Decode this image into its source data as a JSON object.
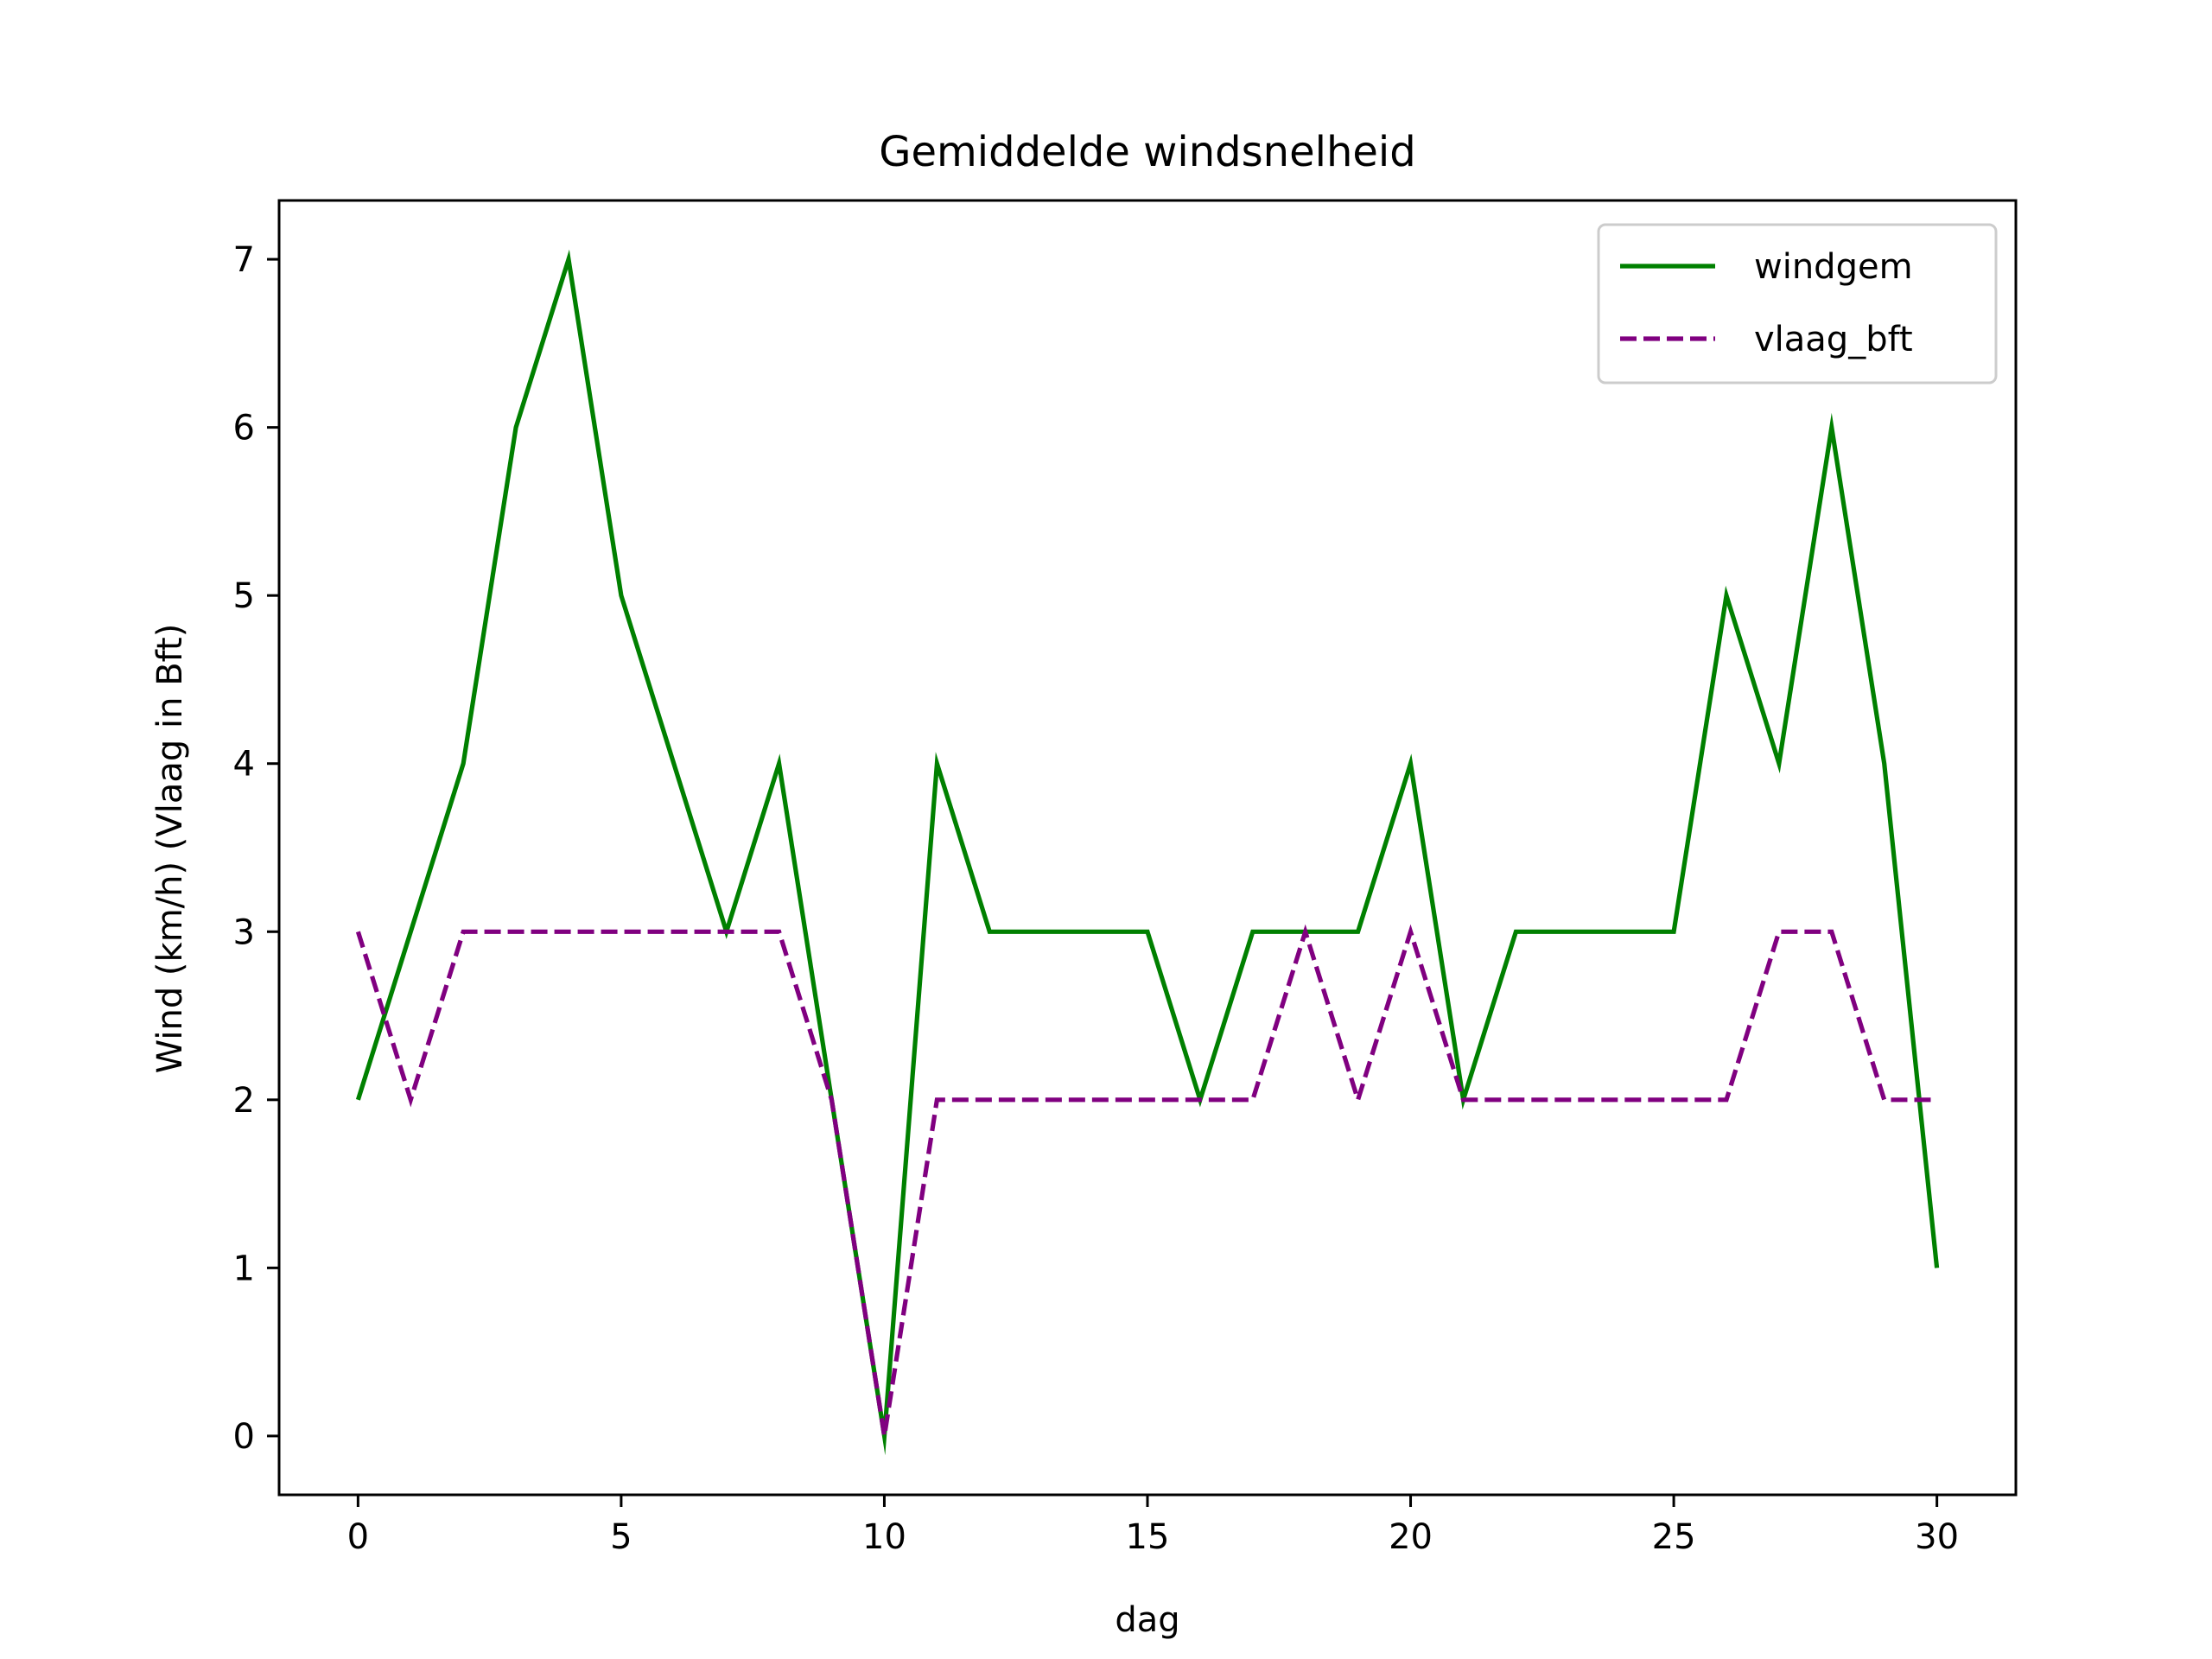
{
  "chart_data": {
    "type": "line",
    "title": "Gemiddelde windsnelheid",
    "xlabel": "dag",
    "ylabel": "Wind (km/h) (Vlaag in Bft)",
    "xlim": [
      -1.5,
      31.5
    ],
    "ylim": [
      -0.35,
      7.35
    ],
    "xticks": [
      0,
      5,
      10,
      15,
      20,
      25,
      30
    ],
    "yticks": [
      0,
      1,
      2,
      3,
      4,
      5,
      6,
      7
    ],
    "grid": false,
    "legend_position": "top-right",
    "x": [
      0,
      1,
      2,
      3,
      4,
      5,
      6,
      7,
      8,
      9,
      10,
      11,
      12,
      13,
      14,
      15,
      16,
      17,
      18,
      19,
      20,
      21,
      22,
      23,
      24,
      25,
      26,
      27,
      28,
      29,
      30
    ],
    "series": [
      {
        "name": "windgem",
        "color": "#008000",
        "style": "solid",
        "values": [
          2,
          3,
          4,
          6,
          7,
          5,
          4,
          3,
          4,
          2,
          0,
          4,
          3,
          3,
          3,
          3,
          2,
          3,
          3,
          3,
          4,
          2,
          3,
          3,
          3,
          3,
          5,
          4,
          6,
          4,
          1
        ]
      },
      {
        "name": "vlaag_bft",
        "color": "#800080",
        "style": "dashed",
        "values": [
          3,
          2,
          3,
          3,
          3,
          3,
          3,
          3,
          3,
          2,
          0,
          2,
          2,
          2,
          2,
          2,
          2,
          2,
          3,
          2,
          3,
          2,
          2,
          2,
          2,
          2,
          2,
          3,
          3,
          2,
          2
        ]
      }
    ]
  }
}
